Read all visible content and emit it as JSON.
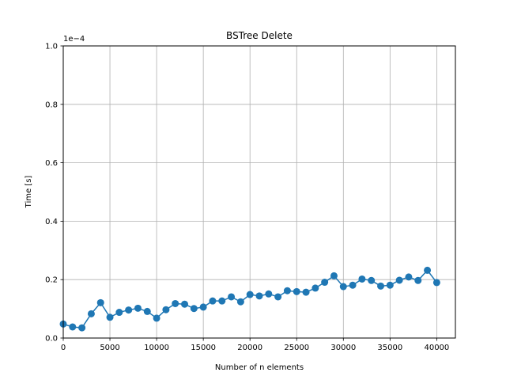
{
  "chart_data": {
    "type": "line",
    "title": "BSTree Delete",
    "xlabel": "Number of n elements",
    "ylabel": "Time [s]",
    "y_scale_label": "1e−4",
    "y_scale_factor": 0.0001,
    "xlim": [
      0,
      42000
    ],
    "ylim": [
      0,
      1.0
    ],
    "grid": true,
    "line_color": "#1f77b4",
    "x_ticks": [
      0,
      5000,
      10000,
      15000,
      20000,
      25000,
      30000,
      35000,
      40000
    ],
    "x_tick_labels": [
      "0",
      "5000",
      "10000",
      "15000",
      "20000",
      "25000",
      "30000",
      "35000",
      "40000"
    ],
    "y_ticks": [
      0.0,
      0.2,
      0.4,
      0.6,
      0.8,
      1.0
    ],
    "y_tick_labels": [
      "0.0",
      "0.2",
      "0.4",
      "0.6",
      "0.8",
      "1.0"
    ],
    "series": [
      {
        "x": [
          0,
          1000,
          2000,
          3000,
          4000,
          5000,
          6000,
          7000,
          8000,
          9000,
          10000,
          11000,
          12000,
          13000,
          14000,
          15000,
          16000,
          17000,
          18000,
          19000,
          20000,
          21000,
          22000,
          23000,
          24000,
          25000,
          26000,
          27000,
          28000,
          29000,
          30000,
          31000,
          32000,
          33000,
          34000,
          35000,
          36000,
          37000,
          38000,
          39000,
          40000
        ],
        "values": [
          0.048,
          0.038,
          0.035,
          0.083,
          0.121,
          0.071,
          0.088,
          0.096,
          0.102,
          0.091,
          0.068,
          0.097,
          0.118,
          0.116,
          0.101,
          0.106,
          0.127,
          0.127,
          0.141,
          0.124,
          0.149,
          0.144,
          0.151,
          0.141,
          0.162,
          0.159,
          0.157,
          0.171,
          0.191,
          0.213,
          0.176,
          0.181,
          0.202,
          0.197,
          0.178,
          0.181,
          0.198,
          0.209,
          0.197,
          0.232,
          0.19
        ]
      }
    ]
  }
}
